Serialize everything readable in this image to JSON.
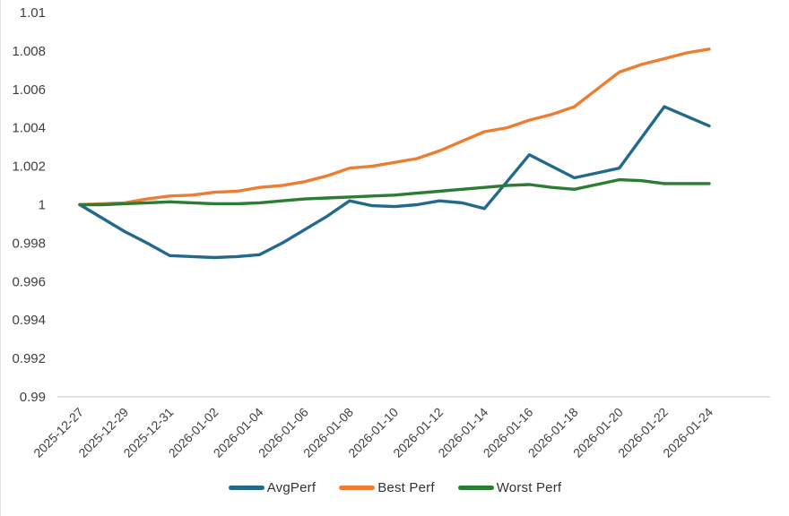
{
  "chart": {
    "background": "#ffffff",
    "axis_line_color": "#d9d9d9",
    "tick_label_color": "#3f3f3f",
    "y_axis": {
      "min": 0.99,
      "max": 1.01,
      "step": 0.002,
      "tick_labels": [
        "1.01",
        "1.008",
        "1.006",
        "1.004",
        "1.002",
        "1",
        "0.998",
        "0.996",
        "0.994",
        "0.992",
        "0.99"
      ]
    },
    "x_tick_labels": [
      "2025-12-27",
      "2025-12-29",
      "2025-12-31",
      "2026-01-02",
      "2026-01-04",
      "2026-01-06",
      "2026-01-08",
      "2026-01-10",
      "2026-01-12",
      "2026-01-14",
      "2026-01-16",
      "2026-01-18",
      "2026-01-20",
      "2026-01-22",
      "2026-01-24"
    ]
  },
  "chart_data": {
    "type": "line",
    "title": "",
    "xlabel": "",
    "ylabel": "",
    "ylim": [
      0.99,
      1.01
    ],
    "grid": false,
    "legend_position": "bottom",
    "x": [
      "2025-12-27",
      "2025-12-28",
      "2025-12-29",
      "2025-12-30",
      "2025-12-31",
      "2026-01-01",
      "2026-01-02",
      "2026-01-03",
      "2026-01-04",
      "2026-01-05",
      "2026-01-06",
      "2026-01-07",
      "2026-01-08",
      "2026-01-09",
      "2026-01-10",
      "2026-01-11",
      "2026-01-12",
      "2026-01-13",
      "2026-01-14",
      "2026-01-15",
      "2026-01-16",
      "2026-01-17",
      "2026-01-18",
      "2026-01-19",
      "2026-01-20",
      "2026-01-21",
      "2026-01-22",
      "2026-01-23",
      "2026-01-24"
    ],
    "x_labeled_ticks": [
      "2025-12-27",
      "2025-12-29",
      "2025-12-31",
      "2026-01-02",
      "2026-01-04",
      "2026-01-06",
      "2026-01-08",
      "2026-01-10",
      "2026-01-12",
      "2026-01-14",
      "2026-01-16",
      "2026-01-18",
      "2026-01-20",
      "2026-01-22",
      "2026-01-24"
    ],
    "series": [
      {
        "name": "AvgPerf",
        "color": "#226a8c",
        "values": [
          1.0,
          0.9993,
          0.9986,
          0.998,
          0.99735,
          0.9973,
          0.99725,
          0.9973,
          0.9974,
          0.998,
          0.9987,
          0.9994,
          1.0002,
          0.99995,
          0.9999,
          1.0,
          1.0002,
          1.0001,
          0.9998,
          1.0012,
          1.0026,
          1.002,
          1.0014,
          1.00165,
          1.0019,
          1.0035,
          1.0051,
          1.0046,
          1.0041
        ]
      },
      {
        "name": "Best Perf",
        "color": "#ED7D31",
        "values": [
          1.0,
          1.00005,
          1.0001,
          1.0003,
          1.00045,
          1.0005,
          1.00065,
          1.0007,
          1.0009,
          1.001,
          1.0012,
          1.0015,
          1.0019,
          1.002,
          1.0022,
          1.0024,
          1.0028,
          1.0033,
          1.0038,
          1.004,
          1.0044,
          1.0047,
          1.0051,
          1.006,
          1.0069,
          1.0073,
          1.0076,
          1.0079,
          1.0081
        ]
      },
      {
        "name": "Worst Perf",
        "color": "#2a7d32",
        "values": [
          1.0,
          1.0,
          1.00005,
          1.0001,
          1.00015,
          1.0001,
          1.00005,
          1.00005,
          1.0001,
          1.0002,
          1.0003,
          1.00035,
          1.0004,
          1.00045,
          1.0005,
          1.0006,
          1.0007,
          1.0008,
          1.0009,
          1.001,
          1.00105,
          1.0009,
          1.0008,
          1.00105,
          1.0013,
          1.00125,
          1.0011,
          1.0011,
          1.0011
        ]
      }
    ]
  },
  "legend": {
    "items": [
      {
        "label": "AvgPerf",
        "color": "#226a8c"
      },
      {
        "label": "Best Perf",
        "color": "#ED7D31"
      },
      {
        "label": "Worst Perf",
        "color": "#2a7d32"
      }
    ]
  }
}
